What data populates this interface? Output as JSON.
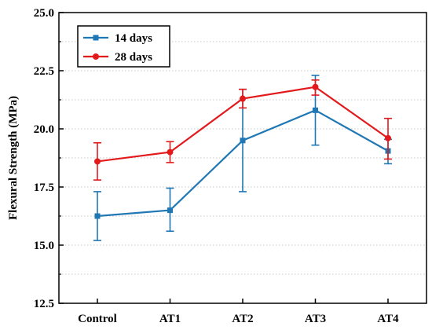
{
  "chart_data": {
    "type": "line",
    "ylabel": "Flexural Strength (MPa)",
    "xlabel": "",
    "categories": [
      "Control",
      "AT1",
      "AT2",
      "AT3",
      "AT4"
    ],
    "ylim": [
      12.5,
      25.0
    ],
    "yticks": [
      "12.5",
      "15.0",
      "17.5",
      "20.0",
      "22.5",
      "25.0"
    ],
    "grid": "horizontal dotted",
    "legend_position": "top-left",
    "series": [
      {
        "name": "14 days",
        "color": "#1f77b4",
        "marker": "square",
        "values": [
          16.25,
          16.5,
          19.5,
          20.8,
          19.05
        ],
        "error_low": [
          15.2,
          15.6,
          17.3,
          19.3,
          18.5
        ],
        "error_high": [
          17.3,
          17.45,
          21.7,
          22.3,
          19.55
        ]
      },
      {
        "name": "28 days",
        "color": "#e31a1c",
        "marker": "circle",
        "values": [
          18.6,
          19.0,
          21.3,
          21.8,
          19.6
        ],
        "error_low": [
          17.8,
          18.55,
          20.9,
          21.45,
          18.7
        ],
        "error_high": [
          19.4,
          19.45,
          21.7,
          22.1,
          20.45
        ]
      }
    ]
  }
}
